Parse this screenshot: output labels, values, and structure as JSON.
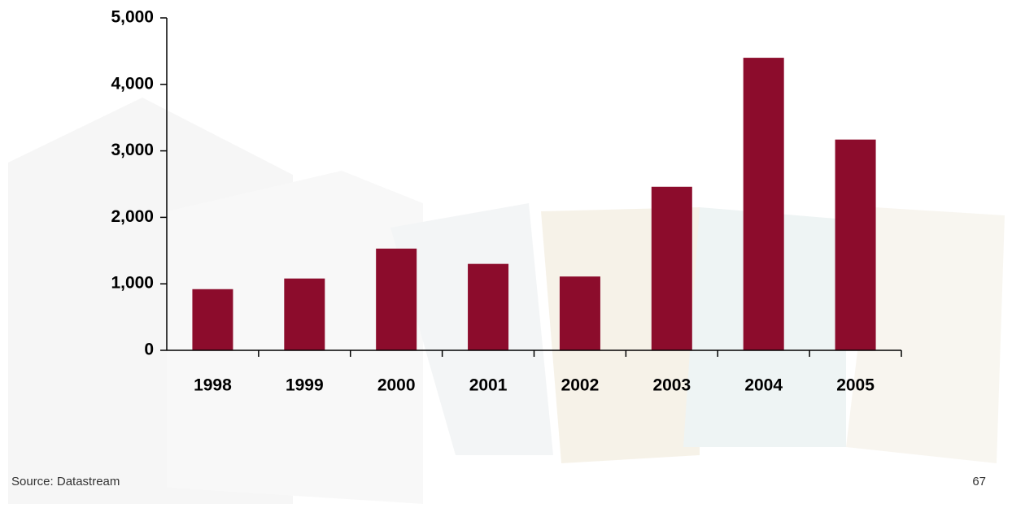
{
  "chart_data": {
    "type": "bar",
    "categories": [
      "1998",
      "1999",
      "2000",
      "2001",
      "2002",
      "2003",
      "2004",
      "2005"
    ],
    "values": [
      920,
      1080,
      1530,
      1300,
      1110,
      2460,
      4400,
      3170
    ],
    "color": "#8c0c2c",
    "ylim": [
      0,
      5000
    ],
    "yticks": [
      0,
      {
        "value": 1000,
        "label": "1,000"
      },
      {
        "value": 2000,
        "label": "2,000"
      },
      {
        "value": 3000,
        "label": "3,000"
      },
      {
        "value": 4000,
        "label": "4,000"
      },
      {
        "value": 5000,
        "label": "5,000"
      }
    ],
    "grid": false,
    "source": "Source: Datastream",
    "page_number": "67"
  }
}
